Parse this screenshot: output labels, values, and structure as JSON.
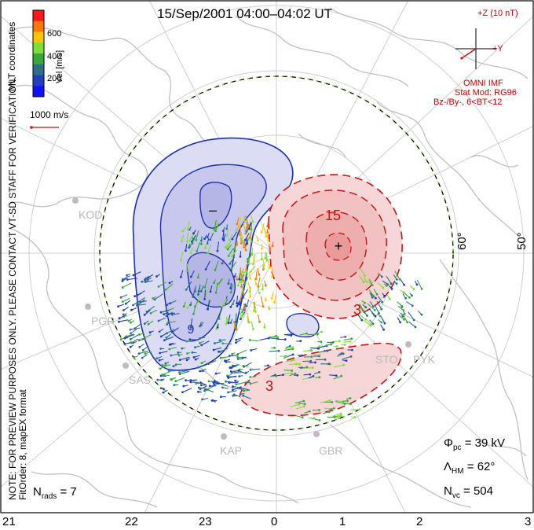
{
  "title": "15/Sep/2001 04:00–04:02 UT",
  "colorbar": {
    "label": "Vel [m/s]",
    "ticks": [
      "600",
      "400",
      "200"
    ],
    "colors": [
      "#ff1a1a",
      "#ff7700",
      "#ffc400",
      "#7ee035",
      "#39a83a",
      "#2e6e8a",
      "#1f3fc0",
      "#1010ff"
    ]
  },
  "coord_label": "MLT coordinates",
  "scale_vector_label": "1000 m/s",
  "imf": {
    "z_label": "+Z (10 nT)",
    "y_label": "+Y",
    "source": "OMNI IMF",
    "model": "Stat Mod: RG96",
    "conditions": "Bz-/By-, 6<BT<12"
  },
  "preview_note": "NOTE: FOR PREVIEW PURPOSES ONLY. PLEASE CONTACT VT-SD STAFF FOR VERIFICATION.",
  "fit_note": "FitOrder: 8, mapEX format",
  "stations": [
    "KOD",
    "PGR",
    "SAS",
    "KAP",
    "GBR",
    "STO",
    "PYK"
  ],
  "lat_labels": [
    "60°",
    "50°"
  ],
  "contour_labels": {
    "neg_cell_sign": "–",
    "pos_cell_sign": "+",
    "neg_contour": "9",
    "pos_contour_a": "15",
    "pos_contour_b": "3",
    "pos_contour_c": "3"
  },
  "stats": {
    "phi_symbol": "Φ",
    "phi_sub": "pc",
    "phi_value": "= 39 kV",
    "lambda_symbol": "Λ",
    "lambda_sub": "HM",
    "lambda_value": "= 62°",
    "nvc_symbol": "N",
    "nvc_sub": "vc",
    "nvc_value": "= 504",
    "nrads_symbol": "N",
    "nrads_sub": "rads",
    "nrads_value": "= 7"
  },
  "mlt_labels": [
    "21",
    "22",
    "23",
    "0",
    "1",
    "2",
    "3"
  ],
  "colors": {
    "negative_fill": "#dcdcf4",
    "negative_line": "#1a2fb0",
    "positive_fill": "#f6d6d6",
    "positive_line": "#cc1111",
    "coastline": "#c0c0c0",
    "grid": "#cfcfcf"
  }
}
